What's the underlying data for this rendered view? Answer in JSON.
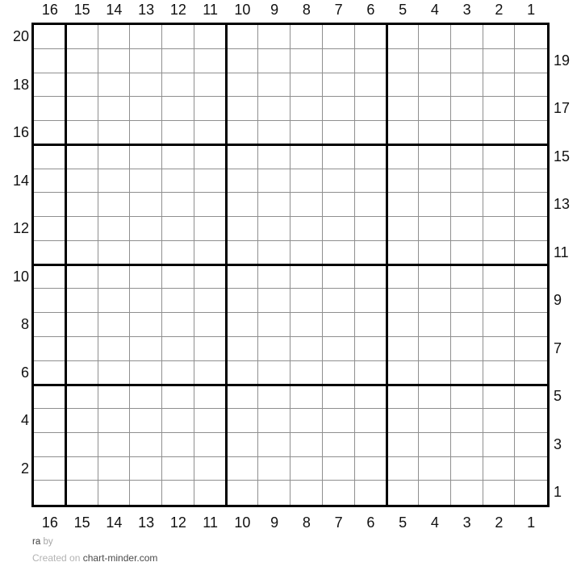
{
  "grid": {
    "columns": 16,
    "rows": 20,
    "bold_gridline_interval": 5,
    "top_labels": [
      "16",
      "15",
      "14",
      "13",
      "12",
      "11",
      "10",
      "9",
      "8",
      "7",
      "6",
      "5",
      "4",
      "3",
      "2",
      "1"
    ],
    "bottom_labels": [
      "16",
      "15",
      "14",
      "13",
      "12",
      "11",
      "10",
      "9",
      "8",
      "7",
      "6",
      "5",
      "4",
      "3",
      "2",
      "1"
    ],
    "left_labels": [
      "20",
      "18",
      "16",
      "14",
      "12",
      "10",
      "8",
      "6",
      "4",
      "2"
    ],
    "right_labels": [
      "19",
      "17",
      "15",
      "13",
      "11",
      "9",
      "7",
      "5",
      "3",
      "1"
    ]
  },
  "footer": {
    "project": "ra",
    "by_label": "by",
    "created_prefix": "Created on",
    "site": "chart-minder.com"
  },
  "colors": {
    "background": "#ffffff",
    "thin_line": "#8f8f8f",
    "thick_line": "#000000",
    "label_text": "#111111",
    "footer_muted": "#b3b3b3",
    "footer_dark": "#4a4a4a"
  },
  "chart_data": {
    "type": "heatmap",
    "title": "ra",
    "x_tick_labels": [
      "16",
      "15",
      "14",
      "13",
      "12",
      "11",
      "10",
      "9",
      "8",
      "7",
      "6",
      "5",
      "4",
      "3",
      "2",
      "1"
    ],
    "y_tick_labels_left": [
      "20",
      "18",
      "16",
      "14",
      "12",
      "10",
      "8",
      "6",
      "4",
      "2"
    ],
    "y_tick_labels_right": [
      "19",
      "17",
      "15",
      "13",
      "11",
      "9",
      "7",
      "5",
      "3",
      "1"
    ],
    "grid": true,
    "bold_gridline_interval": 5,
    "values": [],
    "note": "Blank 16x20 knitting chart: all 320 cells are empty/white, no stitches placed"
  }
}
